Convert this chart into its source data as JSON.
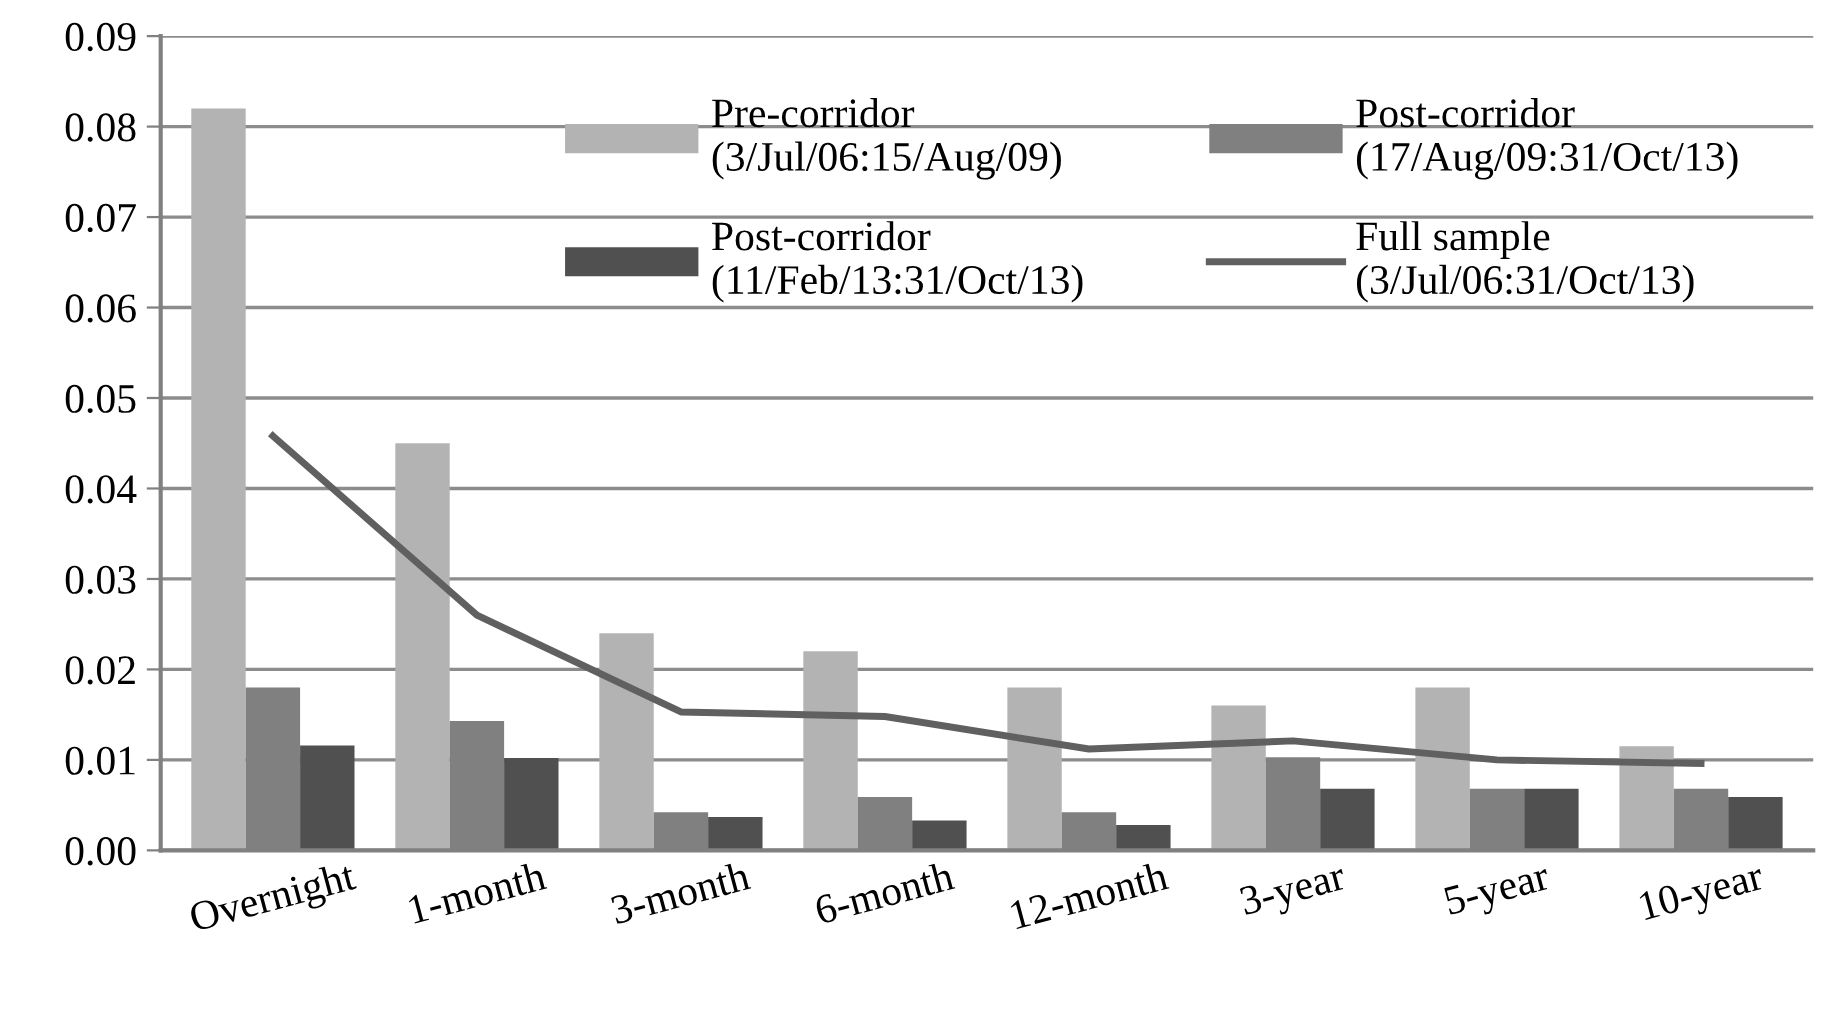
{
  "chart_data": {
    "type": "bar",
    "categories": [
      "Overnight",
      "1-month",
      "3-month",
      "6-month",
      "12-month",
      "3-year",
      "5-year",
      "10-year"
    ],
    "series": [
      {
        "name": "Pre-corridor\n(3/Jul/06:15/Aug/09)",
        "color": "#b3b3b3",
        "values": [
          0.082,
          0.045,
          0.024,
          0.022,
          0.018,
          0.016,
          0.018,
          0.0115
        ]
      },
      {
        "name": "Post-corridor\n(17/Aug/09:31/Oct/13)",
        "color": "#808080",
        "values": [
          0.018,
          0.0143,
          0.0042,
          0.0059,
          0.0042,
          0.0103,
          0.0068,
          0.0068
        ]
      },
      {
        "name": "Post-corridor\n(11/Feb/13:31/Oct/13)",
        "color": "#505050",
        "values": [
          0.0116,
          0.0102,
          0.0037,
          0.0033,
          0.0028,
          0.0068,
          0.0068,
          0.0059
        ]
      },
      {
        "name": "Full sample\n(3/Jul/06:31/Oct/13)",
        "color": "#606060",
        "type": "line",
        "values": [
          0.0458,
          0.026,
          0.0153,
          0.0148,
          0.0112,
          0.0121,
          0.01,
          0.0096
        ]
      }
    ],
    "ylim": [
      0,
      0.09
    ],
    "yticks": [
      {
        "value": 0,
        "label": "0.00"
      },
      {
        "value": 0.01,
        "label": "0.01"
      },
      {
        "value": 0.02,
        "label": "0.02"
      },
      {
        "value": 0.03,
        "label": "0.03"
      },
      {
        "value": 0.04,
        "label": "0.04"
      },
      {
        "value": 0.05,
        "label": "0.05"
      },
      {
        "value": 0.06,
        "label": "0.06"
      },
      {
        "value": 0.07,
        "label": "0.07"
      },
      {
        "value": 0.08,
        "label": "0.08"
      },
      {
        "value": 0.09,
        "label": "0.09"
      }
    ],
    "grid": "y",
    "legend": "top",
    "marker": "none",
    "line_style": "solid"
  }
}
